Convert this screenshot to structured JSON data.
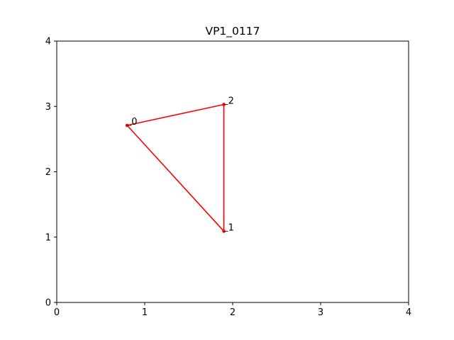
{
  "chart_data": {
    "type": "line",
    "title": "VP1_0117",
    "xlabel": "",
    "ylabel": "",
    "xlim": [
      0,
      4
    ],
    "ylim": [
      0,
      4
    ],
    "xticks": [
      0,
      1,
      2,
      3,
      4
    ],
    "yticks": [
      0,
      1,
      2,
      3,
      4
    ],
    "grid": false,
    "series": [
      {
        "color": "#ff0000",
        "closed": true,
        "points": [
          {
            "label": "0",
            "x": 0.8,
            "y": 2.71
          },
          {
            "label": "1",
            "x": 1.9,
            "y": 1.09
          },
          {
            "label": "2",
            "x": 1.9,
            "y": 3.03
          }
        ]
      }
    ]
  }
}
